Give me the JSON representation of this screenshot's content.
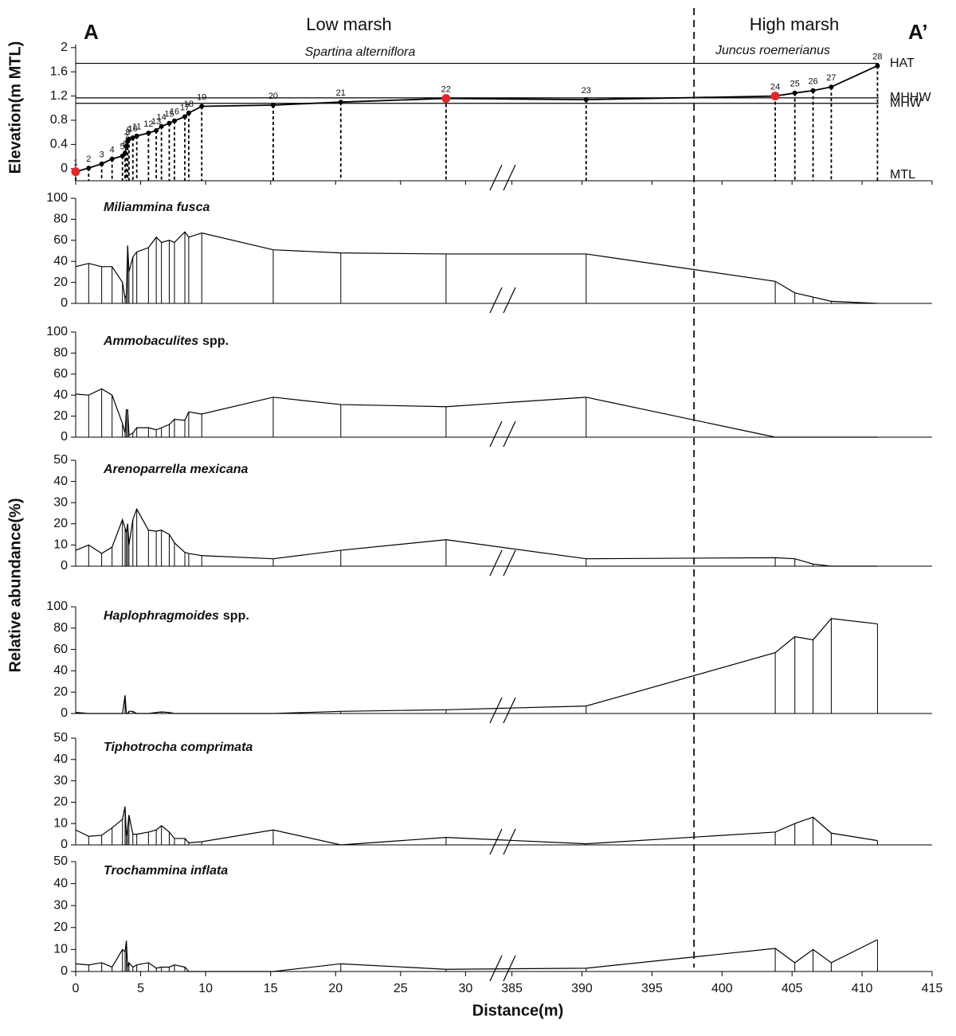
{
  "chart_data": {
    "type": "marsh-profile",
    "title_left": "A",
    "title_right": "A’",
    "zones": [
      {
        "name": "Low marsh",
        "vegetation": "Spartina alterniflora"
      },
      {
        "name": "High marsh",
        "vegetation": "Juncus roemerianus"
      }
    ],
    "zone_boundary": 398.0,
    "xlabel": "Distance(m)",
    "xlim": [
      0,
      415
    ],
    "xbreak": [
      32,
      384
    ],
    "xticks": [
      0,
      5,
      10,
      15,
      20,
      25,
      30,
      385,
      390,
      395,
      400,
      405,
      410,
      415
    ],
    "samples": [
      "1",
      "2",
      "3",
      "4",
      "5",
      "6",
      "7",
      "8",
      "9",
      "10",
      "11",
      "12",
      "13",
      "14",
      "15",
      "16",
      "17",
      "18",
      "19",
      "20",
      "21",
      "22",
      "23",
      "24",
      "25",
      "26",
      "27",
      "28"
    ],
    "x": [
      0,
      1.0,
      2.0,
      2.8,
      3.6,
      3.8,
      3.9,
      4.0,
      4.1,
      4.4,
      4.7,
      5.6,
      6.2,
      6.6,
      7.2,
      7.6,
      8.4,
      8.7,
      9.7,
      15.2,
      20.4,
      28.5,
      390.3,
      403.8,
      405.2,
      406.5,
      407.8,
      411.1
    ],
    "elevation": {
      "ylabel": "Elevation(m MTL)",
      "ylim": [
        -0.2,
        2.05
      ],
      "yticks": [
        0,
        0.4,
        0.8,
        1.2,
        1.6,
        2
      ],
      "values": [
        -0.05,
        0.01,
        0.08,
        0.16,
        0.21,
        0.26,
        0.37,
        0.45,
        0.49,
        0.51,
        0.54,
        0.59,
        0.63,
        0.7,
        0.75,
        0.79,
        0.86,
        0.92,
        1.03,
        1.05,
        1.1,
        1.16,
        1.14,
        1.2,
        1.25,
        1.29,
        1.35,
        1.7
      ],
      "point_colors": [
        "#e0262a",
        "#000",
        "#000",
        "#000",
        "#000",
        "#000",
        "#000",
        "#000",
        "#000",
        "#000",
        "#000",
        "#000",
        "#000",
        "#000",
        "#000",
        "#000",
        "#000",
        "#000",
        "#000",
        "#000",
        "#000",
        "#e0262a",
        "#000",
        "#e0262a",
        "#000",
        "#000",
        "#000",
        "#000"
      ],
      "reference_lines": [
        {
          "label": "HAT",
          "value": 1.74,
          "line": true
        },
        {
          "label": "MHHW",
          "value": 1.17,
          "line": true
        },
        {
          "label": "MHW",
          "value": 1.08,
          "line": true
        },
        {
          "label": "MTL",
          "value": 0,
          "line": false
        }
      ]
    },
    "abundance_ylabel": "Relative abundance(%)",
    "color": "#000000",
    "series": [
      {
        "name": "Miliammina fusca",
        "ylim": [
          0,
          100
        ],
        "yticks": [
          0,
          20,
          40,
          60,
          80,
          100
        ],
        "values": [
          35,
          38,
          35,
          35,
          20,
          5,
          8,
          55,
          30,
          44,
          49,
          53,
          63,
          58,
          60,
          58,
          68,
          63,
          67,
          51,
          48,
          47,
          47,
          21,
          10,
          6,
          2,
          0
        ]
      },
      {
        "name": "Ammobaculites",
        "qualifier": "spp.",
        "ylim": [
          0,
          100
        ],
        "yticks": [
          0,
          20,
          40,
          60,
          80,
          100
        ],
        "values": [
          41,
          40,
          46,
          40,
          13,
          4,
          26,
          26,
          2,
          4,
          9,
          9,
          7,
          9,
          12,
          17,
          16,
          24,
          22,
          38,
          31,
          29,
          38,
          0,
          0,
          0,
          0,
          0
        ]
      },
      {
        "name": "Arenoparrella mexicana",
        "ylim": [
          0,
          50
        ],
        "yticks": [
          0,
          10,
          20,
          30,
          40,
          50
        ],
        "values": [
          7.5,
          10,
          6,
          9,
          22,
          18,
          16,
          20,
          10,
          22,
          27,
          17,
          16.5,
          17,
          15,
          11,
          6.5,
          6,
          5,
          3.5,
          7.5,
          12.5,
          3.5,
          4,
          3.5,
          1,
          0,
          0
        ]
      },
      {
        "name": "Haplophragmoides",
        "qualifier": "spp.",
        "ylim": [
          0,
          100
        ],
        "yticks": [
          0,
          20,
          40,
          60,
          80,
          100
        ],
        "values": [
          1,
          0,
          0,
          0,
          0,
          17,
          0,
          0,
          2,
          2,
          0,
          0,
          1,
          1.5,
          1,
          0,
          0,
          0,
          0,
          0,
          2,
          3.5,
          7,
          57,
          72,
          69,
          89,
          84
        ]
      },
      {
        "name": "Tiphotrocha comprimata",
        "ylim": [
          0,
          50
        ],
        "yticks": [
          0,
          10,
          20,
          30,
          40,
          50
        ],
        "values": [
          7,
          4,
          4.5,
          8,
          12,
          18,
          4,
          8,
          14,
          5,
          5,
          6,
          7,
          9,
          6,
          3,
          3,
          1,
          1.5,
          7,
          0,
          3.5,
          0.5,
          6,
          10,
          13,
          5.5,
          2
        ]
      },
      {
        "name": "Trochammina inflata",
        "ylim": [
          0,
          50
        ],
        "yticks": [
          0,
          10,
          20,
          30,
          40,
          50
        ],
        "values": [
          3.5,
          3,
          4,
          2,
          10,
          9,
          14,
          2,
          4,
          2,
          3,
          4,
          1.5,
          2,
          2,
          3,
          2,
          0,
          0,
          0,
          3.5,
          1,
          1.5,
          10.5,
          4,
          10,
          4,
          14.5
        ]
      }
    ]
  }
}
